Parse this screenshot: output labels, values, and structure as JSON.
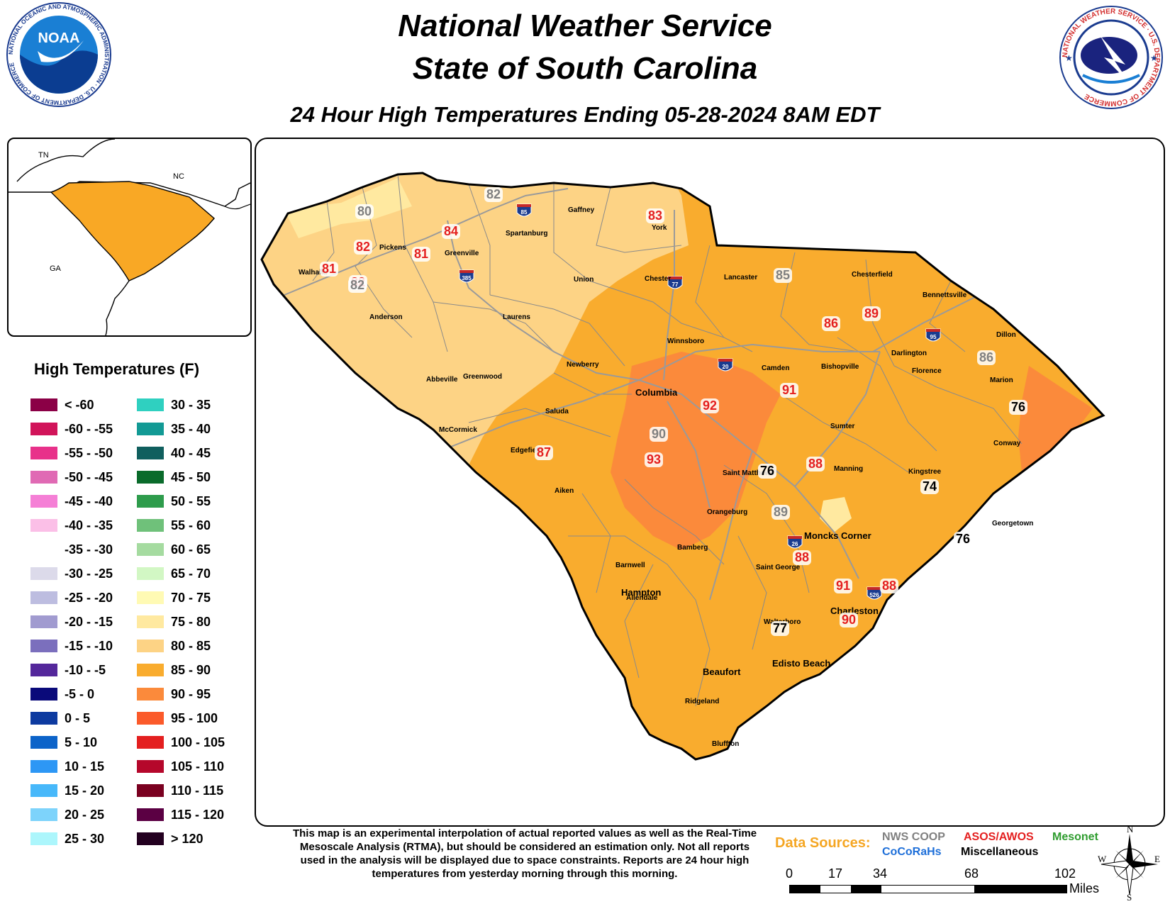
{
  "header": {
    "line1": "National Weather Service",
    "line2": "State of South Carolina",
    "subtitle": "24 Hour High Temperatures Ending 05-28-2024 8AM EDT"
  },
  "logos": {
    "noaa_text": "NOAA",
    "noaa_ring": "NATIONAL OCEANIC AND ATMOSPHERIC ADMINISTRATION · U.S. DEPARTMENT OF COMMERCE",
    "nws_ring": "NATIONAL WEATHER SERVICE · U.S. DEPARTMENT OF COMMERCE"
  },
  "inset": {
    "states": [
      "TN",
      "NC",
      "GA"
    ],
    "highlight_color": "#f9a825"
  },
  "legend": {
    "title": "High Temperatures (F)",
    "items": [
      {
        "label": "< -60",
        "color": "#8b0046"
      },
      {
        "label": "-60 - -55",
        "color": "#d1145a"
      },
      {
        "label": "-55 - -50",
        "color": "#e8318a"
      },
      {
        "label": "-50 - -45",
        "color": "#e06ab4"
      },
      {
        "label": "-45 - -40",
        "color": "#f57fd6"
      },
      {
        "label": "-40 - -35",
        "color": "#fbbfe7"
      },
      {
        "label": "-35 - -30",
        "color": "#ffffff"
      },
      {
        "label": "-30 - -25",
        "color": "#dcdaea"
      },
      {
        "label": "-25 - -20",
        "color": "#bdbde0"
      },
      {
        "label": "-20 - -15",
        "color": "#a19bd0"
      },
      {
        "label": "-15 - -10",
        "color": "#7b6fbd"
      },
      {
        "label": "-10 - -5",
        "color": "#54279b"
      },
      {
        "label": "-5 - 0",
        "color": "#0a0a7a"
      },
      {
        "label": "0 - 5",
        "color": "#0d3aa0"
      },
      {
        "label": "5 - 10",
        "color": "#0c63c9"
      },
      {
        "label": "10 - 15",
        "color": "#2d97f5"
      },
      {
        "label": "15 - 20",
        "color": "#47b8fa"
      },
      {
        "label": "20 - 25",
        "color": "#7dd3fb"
      },
      {
        "label": "25 - 30",
        "color": "#acf6fc"
      },
      {
        "label": "30 - 35",
        "color": "#2fd0c0"
      },
      {
        "label": "35 - 40",
        "color": "#129a95"
      },
      {
        "label": "40 - 45",
        "color": "#105f5e"
      },
      {
        "label": "45 - 50",
        "color": "#0a6b2b"
      },
      {
        "label": "50 - 55",
        "color": "#2e9c4c"
      },
      {
        "label": "55 - 60",
        "color": "#6fc17a"
      },
      {
        "label": "60 - 65",
        "color": "#a5dba0"
      },
      {
        "label": "65 - 70",
        "color": "#d2f7c4"
      },
      {
        "label": "70 - 75",
        "color": "#fffab4"
      },
      {
        "label": "75 - 80",
        "color": "#ffe9a0"
      },
      {
        "label": "80 - 85",
        "color": "#fdd385"
      },
      {
        "label": "85 - 90",
        "color": "#f9ac2e"
      },
      {
        "label": "90 - 95",
        "color": "#fb8a3b"
      },
      {
        "label": "95 - 100",
        "color": "#fb5a2a"
      },
      {
        "label": "100 - 105",
        "color": "#e41f1f"
      },
      {
        "label": "105 - 110",
        "color": "#b5072b"
      },
      {
        "label": "110 - 115",
        "color": "#7a0020"
      },
      {
        "label": "115 - 120",
        "color": "#5b0043"
      },
      {
        "label": "> 120",
        "color": "#230020"
      }
    ]
  },
  "map": {
    "colors": {
      "light": "#fdd385",
      "mid": "#f9ac2e",
      "hot": "#fb8a3b",
      "pale": "#ffe9a0",
      "county": "#8a8a8a",
      "road": "#9a9a9a"
    },
    "places": [
      "Gaffney",
      "Spartanburg",
      "York",
      "Greenville",
      "Pickens",
      "Walhalla",
      "Union",
      "Chester",
      "Lancaster",
      "Chesterfield",
      "Bennettsville",
      "Anderson",
      "Laurens",
      "Winnsboro",
      "Newberry",
      "Camden",
      "Bishopville",
      "Darlington",
      "Dillon",
      "Florence",
      "Marion",
      "Abbeville",
      "Greenwood",
      "Saluda",
      "McCormick",
      "Edgefield",
      "Sumter",
      "Aiken",
      "Saint Matthews",
      "Manning",
      "Kingstree",
      "Conway",
      "Orangeburg",
      "Georgetown",
      "Bamberg",
      "Barnwell",
      "Saint George",
      "Allendale",
      "Walterboro",
      "Ridgeland",
      "Bluffton"
    ],
    "big_places": [
      "Columbia",
      "Moncks Corner",
      "Hampton",
      "Charleston",
      "Beaufort",
      "Edisto Beach"
    ],
    "interstates": [
      "85",
      "385",
      "77",
      "20",
      "95",
      "26",
      "526"
    ],
    "observations": [
      {
        "value": "82",
        "source": "nws_coop"
      },
      {
        "value": "80",
        "source": "nws_coop"
      },
      {
        "value": "83",
        "source": "asos"
      },
      {
        "value": "84",
        "source": "asos"
      },
      {
        "value": "82",
        "source": "asos"
      },
      {
        "value": "81",
        "source": "asos"
      },
      {
        "value": "82",
        "source": "asos"
      },
      {
        "value": "81",
        "source": "asos"
      },
      {
        "value": "82",
        "source": "nws_coop"
      },
      {
        "value": "85",
        "source": "nws_coop"
      },
      {
        "value": "86",
        "source": "asos"
      },
      {
        "value": "89",
        "source": "asos"
      },
      {
        "value": "86",
        "source": "nws_coop"
      },
      {
        "value": "91",
        "source": "asos"
      },
      {
        "value": "92",
        "source": "asos"
      },
      {
        "value": "76",
        "source": "misc"
      },
      {
        "value": "90",
        "source": "nws_coop"
      },
      {
        "value": "87",
        "source": "asos"
      },
      {
        "value": "93",
        "source": "asos"
      },
      {
        "value": "76",
        "source": "misc"
      },
      {
        "value": "88",
        "source": "asos"
      },
      {
        "value": "74",
        "source": "misc"
      },
      {
        "value": "89",
        "source": "nws_coop"
      },
      {
        "value": "76",
        "source": "misc"
      },
      {
        "value": "88",
        "source": "asos"
      },
      {
        "value": "91",
        "source": "asos"
      },
      {
        "value": "88",
        "source": "asos"
      },
      {
        "value": "90",
        "source": "asos"
      },
      {
        "value": "77",
        "source": "misc"
      }
    ]
  },
  "disclaimer": "This map is an experimental interpolation of actual reported values as well as the Real-Time Mesoscale Analysis (RTMA), but should be considered an estimation only. Not all reports used in the analysis will be displayed due to space constraints. Reports are 24 hour high temperatures from yesterday morning through this morning.",
  "sources": {
    "label": "Data Sources:",
    "nws_coop": {
      "text": "NWS COOP",
      "color": "#808080"
    },
    "asos": {
      "text": "ASOS/AWOS",
      "color": "#e41f1f"
    },
    "mesonet": {
      "text": "Mesonet",
      "color": "#2e9c2e"
    },
    "cocorahs": {
      "text": "CoCoRaHs",
      "color": "#1e6fd9"
    },
    "misc": {
      "text": "Miscellaneous",
      "color": "#000000"
    }
  },
  "scale": {
    "ticks": [
      "0",
      "17",
      "34",
      "68",
      "102"
    ],
    "unit": "Miles"
  },
  "compass": [
    "N",
    "E",
    "S",
    "W"
  ]
}
